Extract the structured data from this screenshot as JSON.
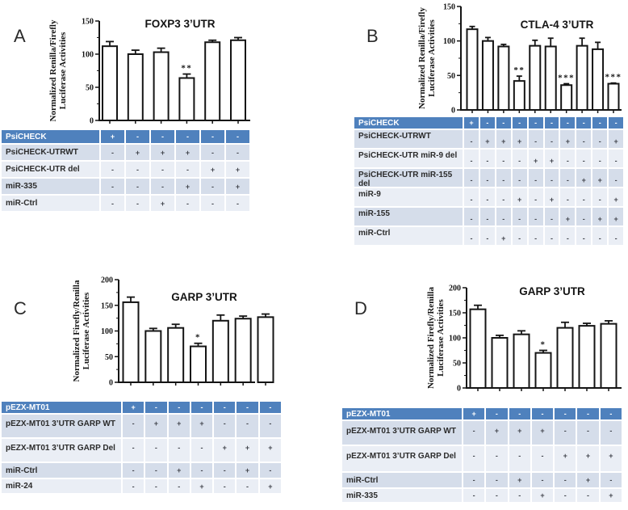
{
  "figure": {
    "background": "#ffffff",
    "colors": {
      "table_header_bg": "#4F81BD",
      "table_row_dark": "#D5DDEA",
      "table_row_light": "#EAEEF5",
      "bar_fill": "#FFFFFF",
      "line_color": "#141414",
      "header_text": "#FFFFFF"
    }
  },
  "panel_labels": [
    "A",
    "B",
    "C",
    "D"
  ],
  "chart_data": [
    {
      "panel": "A",
      "type": "bar",
      "title": "FOXP3 3’UTR",
      "ylabel": "Normalized Renilla/Firefly Luciferase Activities",
      "ylabel_lines": [
        "Normalized Renilla/Firefly",
        "Luciferase Activities"
      ],
      "ylim": [
        0,
        150
      ],
      "yticks": [
        0,
        50,
        100,
        150
      ],
      "grid": false,
      "legend": null,
      "values": [
        112,
        100,
        103,
        64,
        118,
        121
      ],
      "errors": [
        7,
        6,
        6,
        6,
        3,
        4
      ],
      "significance": [
        "",
        "",
        "",
        "**",
        "",
        ""
      ]
    },
    {
      "panel": "B",
      "type": "bar",
      "title": "CTLA-4 3’UTR",
      "ylabel": "Normalized Renilla/Firefly Luciferase Activities",
      "ylabel_lines": [
        "Normalized Renilla/Firefly",
        "Luciferase Activities"
      ],
      "ylim": [
        0,
        150
      ],
      "yticks": [
        0,
        50,
        100,
        150
      ],
      "grid": false,
      "legend": null,
      "values": [
        117,
        100,
        92,
        42,
        93,
        92,
        36,
        93,
        88,
        38
      ],
      "errors": [
        4,
        5,
        3,
        7,
        8,
        12,
        2,
        11,
        10,
        1
      ],
      "significance": [
        "",
        "",
        "",
        "**",
        "",
        "",
        "***",
        "",
        "",
        "***"
      ]
    },
    {
      "panel": "C",
      "type": "bar",
      "title": "GARP 3’UTR",
      "ylabel": "Normalized Firefly/Renilla Luciferase Activities",
      "ylabel_lines": [
        "Normalized Firefly/Renilla",
        "Luciferase Activities"
      ],
      "ylim": [
        0,
        200
      ],
      "yticks": [
        0,
        50,
        100,
        150,
        200
      ],
      "grid": false,
      "legend": null,
      "values": [
        156,
        100,
        106,
        70,
        120,
        124,
        127
      ],
      "errors": [
        10,
        5,
        7,
        6,
        11,
        5,
        6
      ],
      "significance": [
        "",
        "",
        "",
        "*",
        "",
        "",
        ""
      ]
    },
    {
      "panel": "D",
      "type": "bar",
      "title": "GARP 3’UTR",
      "ylabel": "Normalized Firefly/Renilla Luciferase Activities",
      "ylabel_lines": [
        "Normalized Firefly/Renilla",
        "Luciferase Activities"
      ],
      "ylim": [
        0,
        200
      ],
      "yticks": [
        0,
        50,
        100,
        150,
        200
      ],
      "grid": false,
      "legend": null,
      "values": [
        157,
        100,
        107,
        70,
        120,
        124,
        128
      ],
      "errors": [
        8,
        5,
        7,
        5,
        11,
        5,
        6
      ],
      "significance": [
        "",
        "",
        "",
        "*",
        "",
        "",
        ""
      ]
    }
  ],
  "tables": [
    {
      "panel": "A",
      "rows": [
        {
          "label": "PsiCHECK",
          "cells": [
            "+",
            "-",
            "-",
            "-",
            "-",
            "-"
          ]
        },
        {
          "label": "PsiCHECK-UTRWT",
          "cells": [
            "-",
            "+",
            "+",
            "+",
            "-",
            "-"
          ]
        },
        {
          "label": "PsiCHECK-UTR del",
          "cells": [
            "-",
            "-",
            "-",
            "-",
            "+",
            "+"
          ]
        },
        {
          "label": "miR-335",
          "cells": [
            "-",
            "-",
            "-",
            "+",
            "-",
            "+"
          ]
        },
        {
          "label": "miR-Ctrl",
          "cells": [
            "-",
            "-",
            "+",
            "-",
            "-",
            "-"
          ]
        }
      ]
    },
    {
      "panel": "B",
      "rows": [
        {
          "label": "PsiCHECK",
          "cells": [
            "+",
            "-",
            "-",
            "-",
            "-",
            "-",
            "-",
            "-",
            "-",
            "-"
          ]
        },
        {
          "label": "PsiCHECK-UTRWT",
          "cells": [
            "-",
            "+",
            "+",
            "+",
            "-",
            "-",
            "+",
            "-",
            "-",
            "+"
          ]
        },
        {
          "label": "PsiCHECK-UTR miR-9 del",
          "cells": [
            "-",
            "-",
            "-",
            "-",
            "+",
            "+",
            "-",
            "-",
            "-",
            "-"
          ]
        },
        {
          "label": "PsiCHECK-UTR miR-155 del",
          "cells": [
            "-",
            "-",
            "-",
            "-",
            "-",
            "-",
            "-",
            "+",
            "+",
            "-"
          ]
        },
        {
          "label": "miR-9",
          "cells": [
            "-",
            "-",
            "-",
            "+",
            "-",
            "+",
            "-",
            "-",
            "-",
            "+"
          ]
        },
        {
          "label": "miR-155",
          "cells": [
            "-",
            "-",
            "-",
            "-",
            "-",
            "-",
            "+",
            "-",
            "+",
            "+"
          ]
        },
        {
          "label": "miR-Ctrl",
          "cells": [
            "-",
            "-",
            "+",
            "-",
            "-",
            "-",
            "-",
            "-",
            "-",
            "-"
          ]
        }
      ]
    },
    {
      "panel": "C",
      "rows": [
        {
          "label": "pEZX-MT01",
          "cells": [
            "+",
            "-",
            "-",
            "-",
            "-",
            "-",
            "-"
          ]
        },
        {
          "label": "pEZX-MT01 3’UTR GARP WT",
          "cells": [
            "-",
            "+",
            "+",
            "+",
            "-",
            "-",
            "-"
          ]
        },
        {
          "label": "pEZX-MT01 3’UTR GARP Del",
          "cells": [
            "-",
            "-",
            "-",
            "-",
            "+",
            "+",
            "+"
          ]
        },
        {
          "label": "miR-Ctrl",
          "cells": [
            "-",
            "-",
            "+",
            "-",
            "-",
            "+",
            "-"
          ]
        },
        {
          "label": "miR-24",
          "cells": [
            "-",
            "-",
            "-",
            "+",
            "-",
            "-",
            "+"
          ]
        }
      ]
    },
    {
      "panel": "D",
      "rows": [
        {
          "label": "pEZX-MT01",
          "cells": [
            "+",
            "-",
            "-",
            "-",
            "-",
            "-",
            "-"
          ]
        },
        {
          "label": "pEZX-MT01 3’UTR GARP WT",
          "cells": [
            "-",
            "+",
            "+",
            "+",
            "-",
            "-",
            "-"
          ]
        },
        {
          "label": "pEZX-MT01 3’UTR GARP Del",
          "cells": [
            "-",
            "-",
            "-",
            "-",
            "+",
            "+",
            "+"
          ]
        },
        {
          "label": "miR-Ctrl",
          "cells": [
            "-",
            "-",
            "+",
            "-",
            "-",
            "+",
            "-"
          ]
        },
        {
          "label": "miR-335",
          "cells": [
            "-",
            "-",
            "-",
            "+",
            "-",
            "-",
            "+"
          ]
        }
      ]
    }
  ]
}
